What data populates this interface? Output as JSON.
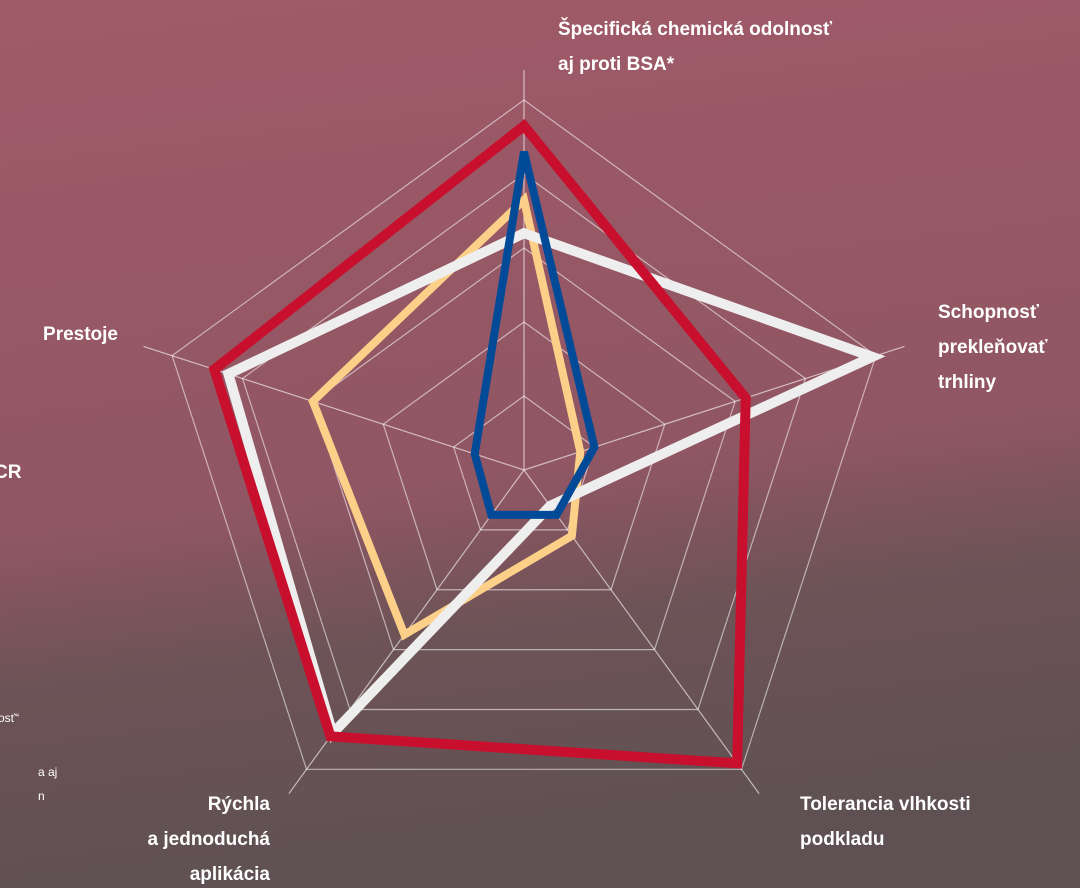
{
  "chart_data": {
    "type": "radar",
    "categories": [
      [
        "Špecifická chemická odolnosť",
        "aj proti  BSA*"
      ],
      [
        "Schopnosť",
        "prekleňovať",
        "trhliny"
      ],
      [
        "Tolerancia vlhkosti",
        "podkladu"
      ],
      [
        "Rýchla",
        "a jednoduchá",
        "aplikácia"
      ],
      [
        "Prestoje"
      ]
    ],
    "series": [
      {
        "color": "#fdd08a",
        "values": [
          7.3,
          1.6,
          2.2,
          5.5,
          6.0
        ]
      },
      {
        "color": "#eeeeee",
        "values": [
          6.4,
          9.9,
          1.2,
          8.8,
          8.4
        ]
      },
      {
        "color": "#c8102e",
        "values": [
          9.3,
          6.3,
          9.8,
          8.9,
          8.8
        ]
      },
      {
        "color": "#004a98",
        "values": [
          8.6,
          2.0,
          1.5,
          1.5,
          1.4
        ]
      }
    ],
    "rlim": [
      0,
      10
    ],
    "rticks": [
      2,
      4,
      6,
      8,
      10
    ],
    "grid": true,
    "background_fragments": [
      "CR",
      "osť“",
      "a aj",
      "n"
    ]
  }
}
